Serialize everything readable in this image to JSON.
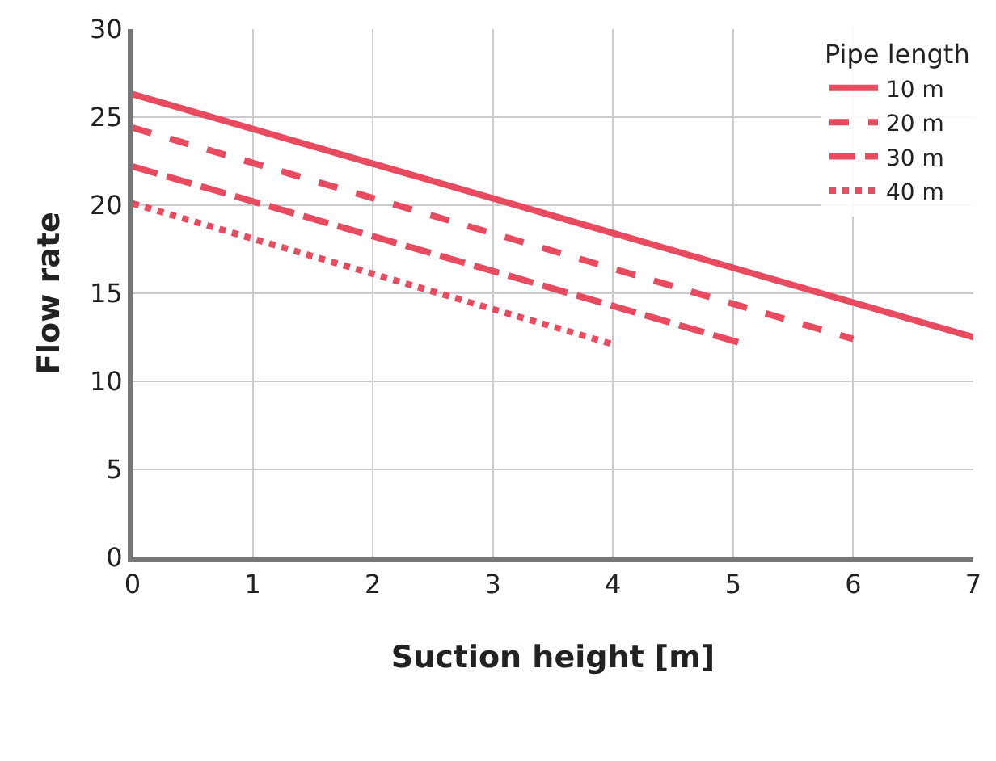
{
  "chart_data": {
    "type": "line",
    "xlabel": "Suction height [m]",
    "ylabel": "Flow rate",
    "legend_title": "Pipe length",
    "series": [
      {
        "name": "10 m",
        "color": "#e84a5f",
        "line_style": "solid",
        "x": [
          0,
          7
        ],
        "values": [
          26.3,
          12.5
        ]
      },
      {
        "name": "20 m",
        "color": "#e84a5f",
        "line_style": "dashed",
        "x": [
          0,
          6
        ],
        "values": [
          24.4,
          12.4
        ]
      },
      {
        "name": "30 m",
        "color": "#e84a5f",
        "line_style": "longdash",
        "x": [
          0,
          5.1
        ],
        "values": [
          22.2,
          12.1
        ]
      },
      {
        "name": "40 m",
        "color": "#e84a5f",
        "line_style": "dotted",
        "x": [
          0,
          4
        ],
        "values": [
          20.1,
          12.1
        ]
      }
    ],
    "xlim": [
      0,
      7
    ],
    "xticks": [
      0,
      1,
      2,
      3,
      4,
      5,
      6,
      7
    ],
    "ylim": [
      0,
      30
    ],
    "yticks": [
      0,
      5,
      10,
      15,
      20,
      25,
      30
    ],
    "grid": true,
    "legend": "top right",
    "marker": "none"
  }
}
